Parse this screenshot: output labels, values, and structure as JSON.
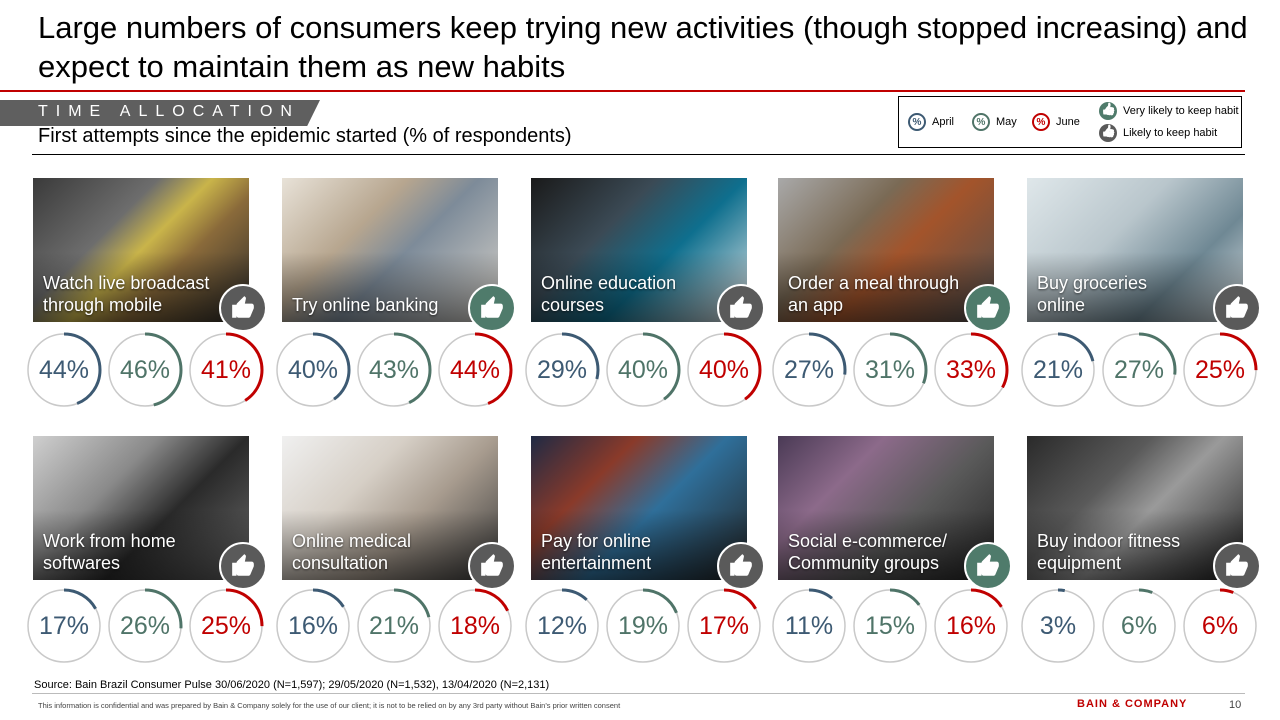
{
  "title": "Large numbers of consumers keep trying new activities (though stopped increasing) and expect to maintain them as new habits",
  "section": "TIME ALLOCATION",
  "subtitle": "First attempts since the epidemic started (% of respondents)",
  "legend": {
    "percent_symbol": "%",
    "april": "April",
    "may": "May",
    "june": "June",
    "very_likely": "Very likely to keep habit",
    "likely": "Likely to keep habit"
  },
  "colors": {
    "april": "#3d5a73",
    "may": "#4f7468",
    "june": "#c00000",
    "very_likely": "#4f7b6b",
    "likely": "#5a5a5a",
    "ring": "#c9c9c9"
  },
  "chart_data": {
    "type": "table",
    "series": [
      {
        "name": "April"
      },
      {
        "name": "May"
      },
      {
        "name": "June"
      }
    ],
    "activities": [
      {
        "label": "Watch live broadcast\nthrough mobile",
        "habit": "likely",
        "values": [
          44,
          46,
          41
        ],
        "photo": "phone-apps"
      },
      {
        "label": "Try online banking",
        "habit": "very_likely",
        "values": [
          40,
          43,
          44
        ],
        "photo": "credit-card"
      },
      {
        "label": "Online education\ncourses",
        "habit": "likely",
        "values": [
          29,
          40,
          40
        ],
        "photo": "computer-screen"
      },
      {
        "label": "Order a meal through\nan app",
        "habit": "very_likely",
        "values": [
          27,
          31,
          33
        ],
        "photo": "street-cyclist"
      },
      {
        "label": "Buy groceries\nonline",
        "habit": "likely",
        "values": [
          21,
          27,
          25
        ],
        "photo": "shopping-carts"
      },
      {
        "label": "Work from home\nsoftwares",
        "habit": "likely",
        "values": [
          17,
          26,
          25
        ],
        "photo": "headset"
      },
      {
        "label": "Online medical\nconsultation",
        "habit": "likely",
        "values": [
          16,
          21,
          18
        ],
        "photo": "doctor-laptop"
      },
      {
        "label": "Pay for online\nentertainment",
        "habit": "likely",
        "values": [
          12,
          19,
          17
        ],
        "photo": "tv-remote"
      },
      {
        "label": "Social e-commerce/\nCommunity groups",
        "habit": "very_likely",
        "values": [
          11,
          15,
          16
        ],
        "photo": "typing-laptop"
      },
      {
        "label": "Buy indoor fitness\nequipment",
        "habit": "likely",
        "values": [
          3,
          6,
          6
        ],
        "photo": "exercise-bike"
      }
    ]
  },
  "footer": {
    "source": "Source: Bain Brazil Consumer Pulse 30/06/2020 (N=1,597); 29/05/2020 (N=1,532), 13/04/2020 (N=2,131)",
    "disclaimer": "This information is confidential and was prepared by Bain & Company solely for the use of our client; it is not to be relied on by any 3rd party without Bain's prior written consent",
    "brand": "BAIN & COMPANY",
    "page": "10"
  }
}
